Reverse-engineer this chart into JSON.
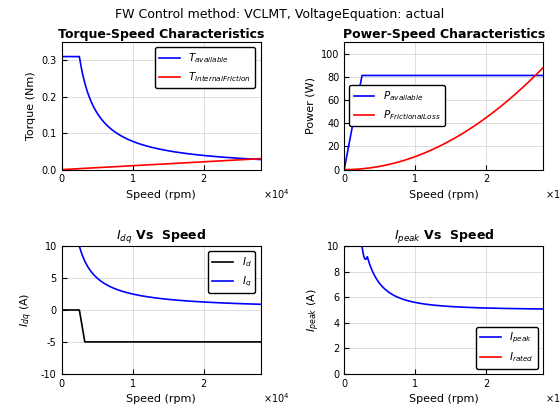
{
  "suptitle": "FW Control method: VCLMT, VoltageEquation: actual",
  "speed_max": 28000,
  "base_speed": 2500,
  "rated_current": 10.0,
  "ax1": {
    "title": "Torque-Speed Characteristics",
    "xlabel": "Speed (rpm)",
    "ylabel": "Torque (Nm)",
    "ylim": [
      0,
      0.35
    ],
    "yticks": [
      0.0,
      0.1,
      0.2,
      0.3
    ],
    "colors": [
      "#0000ff",
      "#ff0000"
    ]
  },
  "ax2": {
    "title": "Power-Speed Characteristics",
    "xlabel": "Speed (rpm)",
    "ylabel": "Power (W)",
    "ylim": [
      0,
      110
    ],
    "yticks": [
      0,
      20,
      40,
      60,
      80,
      100
    ],
    "colors": [
      "#0000ff",
      "#ff0000"
    ]
  },
  "ax3": {
    "title": "I_{dq} Vs  Speed",
    "xlabel": "Speed (rpm)",
    "ylabel": "I_{dq} (A)",
    "ylim": [
      -10,
      10
    ],
    "yticks": [
      -10,
      -5,
      0,
      5,
      10
    ],
    "colors": [
      "#000000",
      "#0000ff"
    ]
  },
  "ax4": {
    "title": "I_{peak} Vs  Speed",
    "xlabel": "Speed (rpm)",
    "ylabel": "I_{peak} (A)",
    "ylim": [
      0,
      10
    ],
    "yticks": [
      0,
      2,
      4,
      6,
      8,
      10
    ],
    "colors": [
      "#0000ff",
      "#ff0000"
    ]
  },
  "grid_color": "#d0d0d0",
  "bg_color": "#ffffff",
  "suptitle_fontsize": 9,
  "title_fontsize": 9,
  "label_fontsize": 8,
  "legend_fontsize": 7.5,
  "line_width": 1.2
}
